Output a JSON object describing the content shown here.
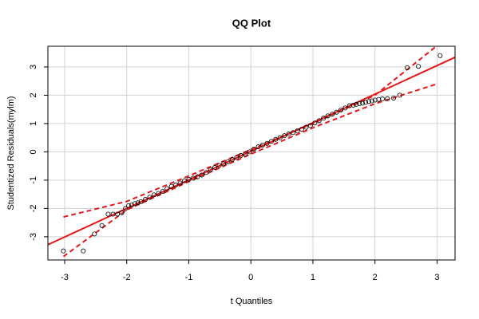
{
  "chart_data": {
    "type": "scatter",
    "title": "QQ Plot",
    "x_label": "t Quantiles",
    "y_label": "Studentized Residuals(mylm)",
    "xlim": [
      -3.27,
      3.29
    ],
    "ylim": [
      -3.82,
      3.73
    ],
    "xticks": [
      -3,
      -2,
      -1,
      0,
      1,
      2,
      3
    ],
    "yticks": [
      -3,
      -2,
      -1,
      0,
      1,
      2,
      3
    ],
    "grid": true,
    "point_color": "#000000",
    "points": {
      "x": [
        -3.02,
        -2.7,
        -2.52,
        -2.4,
        -2.3,
        -2.22,
        -2.15,
        -2.08,
        -2.02,
        -1.97,
        -1.92,
        -1.87,
        -1.82,
        -1.77,
        -1.7,
        -1.63,
        -1.56,
        -1.49,
        -1.42,
        -1.35,
        -1.28,
        -1.21,
        -1.14,
        -1.07,
        -1.0,
        -0.93,
        -0.86,
        -0.79,
        -0.72,
        -0.65,
        -0.58,
        -0.51,
        -0.44,
        -0.37,
        -0.3,
        -0.23,
        -0.16,
        -0.09,
        -0.02,
        0.05,
        0.12,
        0.19,
        0.26,
        0.33,
        0.4,
        0.47,
        0.54,
        0.61,
        0.68,
        0.75,
        0.82,
        0.89,
        0.96,
        1.03,
        1.1,
        1.17,
        1.24,
        1.31,
        1.38,
        1.45,
        1.52,
        1.59,
        1.65,
        1.7,
        1.75,
        1.8,
        1.85,
        1.9,
        1.95,
        2.0,
        2.06,
        2.12,
        2.2,
        2.3,
        2.4,
        2.52,
        2.7,
        3.05
      ],
      "y": [
        -3.5,
        -3.5,
        -2.9,
        -2.6,
        -2.2,
        -2.2,
        -2.2,
        -2.15,
        -2.0,
        -1.9,
        -1.88,
        -1.83,
        -1.8,
        -1.76,
        -1.68,
        -1.6,
        -1.52,
        -1.47,
        -1.4,
        -1.3,
        -1.22,
        -1.17,
        -1.1,
        -1.02,
        -0.97,
        -0.93,
        -0.88,
        -0.82,
        -0.73,
        -0.63,
        -0.55,
        -0.48,
        -0.42,
        -0.35,
        -0.27,
        -0.2,
        -0.13,
        -0.08,
        0.0,
        0.1,
        0.18,
        0.24,
        0.3,
        0.37,
        0.44,
        0.5,
        0.57,
        0.63,
        0.68,
        0.74,
        0.8,
        0.87,
        0.93,
        1.02,
        1.1,
        1.19,
        1.27,
        1.33,
        1.4,
        1.48,
        1.55,
        1.63,
        1.65,
        1.68,
        1.7,
        1.72,
        1.75,
        1.78,
        1.8,
        1.83,
        1.85,
        1.87,
        1.88,
        1.9,
        2.0,
        2.97,
        3.02,
        3.4
      ]
    },
    "reference_line": {
      "color": "#e41a1c",
      "x": [
        -3.27,
        3.29
      ],
      "y": [
        -3.28,
        3.34
      ]
    },
    "bands": {
      "color": "#e41a1c",
      "upper": {
        "x": [
          -3.02,
          -2,
          -1,
          0,
          1,
          2,
          3
        ],
        "y": [
          -2.3,
          -1.75,
          -0.85,
          0.08,
          1.0,
          2.0,
          3.75
        ]
      },
      "lower": {
        "x": [
          -3.02,
          -2,
          -1,
          0,
          1,
          2,
          3
        ],
        "y": [
          -3.7,
          -2.05,
          -1.05,
          -0.08,
          0.85,
          1.7,
          2.4
        ]
      }
    }
  }
}
